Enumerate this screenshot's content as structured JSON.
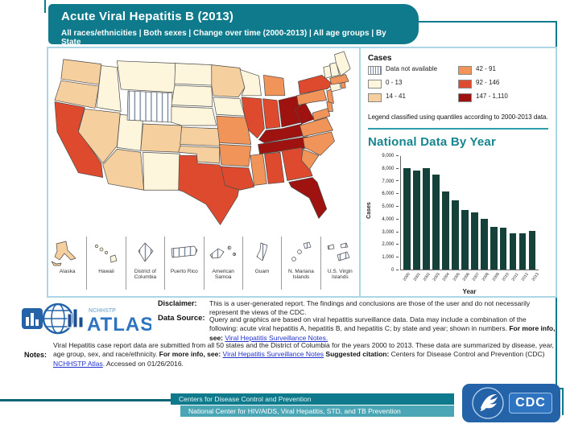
{
  "header": {
    "title": "Acute Viral Hepatitis  B (2013)",
    "subtitle": "All races/ethnicities | Both sexes | Change over time (2000-2013) | All age groups | By State"
  },
  "legend": {
    "title": "Cases",
    "note": "Legend classified using quantiles according to 2000-2013 data.",
    "classes": [
      {
        "id": "c0",
        "label": "Data not available",
        "color": "hatch"
      },
      {
        "id": "c1",
        "label": "0 - 13",
        "color": "#fdf5dc"
      },
      {
        "id": "c2",
        "label": "14 - 41",
        "color": "#f5cf9e"
      },
      {
        "id": "c3",
        "label": "42 - 91",
        "color": "#f0945a"
      },
      {
        "id": "c4",
        "label": "92 - 146",
        "color": "#de4a2d"
      },
      {
        "id": "c5",
        "label": "147 - 1,110",
        "color": "#9e1310"
      }
    ]
  },
  "map": {
    "states": {
      "WA": "c2",
      "OR": "c2",
      "CA": "c4",
      "ID": "c1",
      "NV": "c2",
      "UT": "c1",
      "AZ": "c2",
      "MT": "c1",
      "WY": "c0",
      "CO": "c2",
      "NM": "c1",
      "ND": "c1",
      "SD": "c1",
      "NE": "c1",
      "KS": "c2",
      "OK": "c2",
      "TX": "c4",
      "MN": "c2",
      "IA": "c1",
      "MO": "c3",
      "AR": "c3",
      "LA": "c4",
      "WI": "c1",
      "IL": "c4",
      "MI": "c3",
      "IN": "c4",
      "OH": "c5",
      "KY": "c5",
      "TN": "c5",
      "MS": "c3",
      "AL": "c4",
      "GA": "c4",
      "FL": "c5",
      "SC": "c3",
      "NC": "c3",
      "VA": "c3",
      "WV": "c5",
      "MD": "c3",
      "DE": "c3",
      "PA": "c3",
      "NY": "c4",
      "NJ": "c3",
      "CT": "c1",
      "RI": "c3",
      "MA": "c3",
      "VT": "c1",
      "NH": "c1",
      "ME": "c1"
    },
    "insets": [
      {
        "name": "Alaska",
        "class": "c2"
      },
      {
        "name": "Hawaii",
        "class": "c1"
      },
      {
        "name": "District of Columbia",
        "class": "c0"
      },
      {
        "name": "Puerto Rico",
        "class": "c0"
      },
      {
        "name": "American Samoa",
        "class": "c0"
      },
      {
        "name": "Guam",
        "class": "c0"
      },
      {
        "name": "N. Mariana Islands",
        "class": "c0"
      },
      {
        "name": "U.S. Virgin Islands",
        "class": "c0"
      }
    ]
  },
  "chart_data": {
    "type": "bar",
    "title": "National Data By Year",
    "xlabel": "Year",
    "ylabel": "Cases",
    "categories": [
      "2000",
      "2001",
      "2002",
      "2003",
      "2004",
      "2005",
      "2006",
      "2007",
      "2008",
      "2009",
      "2010",
      "2011",
      "2012",
      "2013"
    ],
    "values": [
      8036,
      7844,
      8064,
      7526,
      6212,
      5494,
      4713,
      4519,
      4033,
      3371,
      3350,
      2903,
      2895,
      3050
    ],
    "ylim": [
      0,
      9000
    ],
    "ytick_step": 1000,
    "bar_color": "#14423a",
    "grid": false,
    "legend_position": "none"
  },
  "atlas": {
    "nchhstp": "NCHHSTP",
    "name": "ATLAS"
  },
  "disclaimer": {
    "label": "Disclaimer:",
    "text": "This is a user-generated report. The findings and conclusions are those of the user and do not necessarily represent the views of the CDC."
  },
  "data_source": {
    "label": "Data Source:",
    "text": "Query and graphics are based on viral hepatitis surveillance data. Data may include a combination of the following: acute viral hepatitis A, hepatitis B, and hepatitis C; by state and year; shown in numbers. ",
    "more_info_bold": "For more info, see: ",
    "link": "Viral Hepatitis Surveillance Notes."
  },
  "notes": {
    "label": "Notes:",
    "text1": "Viral Hepatitis case report data are submitted from all 50 states and the District of Columbia for the years 2000 to 2013. These data are summarized by disease, year, age group, sex, and race/ethnicity. ",
    "more_info_bold": "For more info, see: ",
    "link1": "Viral Hepatitis Surveillance Notes",
    "citation_bold": " Suggested citation: ",
    "text2": "Centers for Disease Control and Prevention (CDC) ",
    "link2": "NCHHSTP Atlas",
    "text3": ". Accessed on 01/26/2016."
  },
  "footer": {
    "bar1": "Centers for Disease Control and Prevention",
    "bar2": "National Center for HIV/AIDS, Viral Hepatitis, STD, and TB Prevention",
    "cdc": "CDC"
  }
}
